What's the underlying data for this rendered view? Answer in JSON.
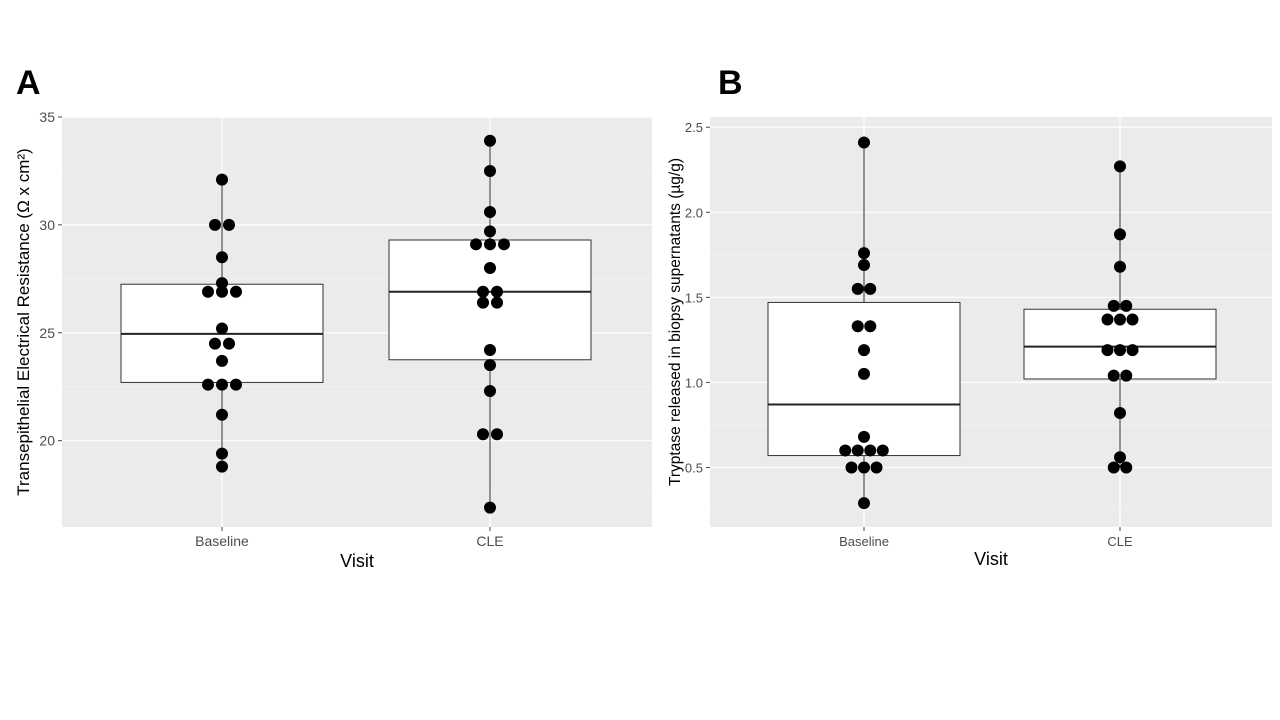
{
  "panels": {
    "a_label": "A",
    "b_label": "B"
  },
  "chart_data": [
    {
      "type": "box",
      "panel": "A",
      "title": "",
      "xlabel": "Visit",
      "ylabel": "Transepithelial Electrical Resistance (Ω x cm²)",
      "categories": [
        "Baseline",
        "CLE"
      ],
      "ylim": [
        16,
        35
      ],
      "yticks": [
        20,
        25,
        30,
        35
      ],
      "grid": true,
      "boxes": [
        {
          "category": "Baseline",
          "whisker_low": 18.8,
          "q1": 22.7,
          "median": 24.95,
          "q3": 27.25,
          "whisker_high": 32.1
        },
        {
          "category": "CLE",
          "whisker_low": 16.9,
          "q1": 23.75,
          "median": 26.9,
          "q3": 29.3,
          "whisker_high": 33.9
        }
      ],
      "points": [
        {
          "category": "Baseline",
          "values": [
            32.1,
            30.0,
            30.0,
            28.5,
            27.3,
            26.9,
            26.9,
            26.9,
            25.2,
            24.5,
            24.5,
            23.7,
            22.6,
            22.6,
            22.6,
            21.2,
            19.4,
            18.8
          ]
        },
        {
          "category": "CLE",
          "values": [
            33.9,
            32.5,
            30.6,
            29.7,
            29.1,
            29.1,
            29.1,
            28.0,
            26.9,
            26.9,
            26.4,
            26.4,
            24.2,
            23.5,
            22.3,
            20.3,
            20.3,
            16.9
          ]
        }
      ]
    },
    {
      "type": "box",
      "panel": "B",
      "title": "",
      "xlabel": "Visit",
      "ylabel": "Tryptase released in biopsy supernatants (µg/g)",
      "categories": [
        "Baseline",
        "CLE"
      ],
      "ylim": [
        0.15,
        2.56
      ],
      "yticks": [
        0.5,
        1.0,
        1.5,
        2.0,
        2.5
      ],
      "ytick_labels": [
        "0.5",
        "1.0",
        "1.5",
        "2.0",
        "2.5"
      ],
      "grid": true,
      "boxes": [
        {
          "category": "Baseline",
          "whisker_low": 0.29,
          "q1": 0.57,
          "median": 0.87,
          "q3": 1.47,
          "whisker_high": 2.41
        },
        {
          "category": "CLE",
          "whisker_low": 0.5,
          "q1": 1.02,
          "median": 1.21,
          "q3": 1.43,
          "whisker_high": 2.27
        }
      ],
      "points": [
        {
          "category": "Baseline",
          "values": [
            2.41,
            1.76,
            1.69,
            1.55,
            1.55,
            1.33,
            1.33,
            1.19,
            1.05,
            0.68,
            0.6,
            0.6,
            0.6,
            0.6,
            0.5,
            0.5,
            0.5,
            0.29
          ]
        },
        {
          "category": "CLE",
          "values": [
            2.27,
            1.87,
            1.68,
            1.45,
            1.45,
            1.37,
            1.37,
            1.37,
            1.19,
            1.19,
            1.19,
            1.04,
            1.04,
            0.82,
            0.56,
            0.5,
            0.5
          ]
        }
      ]
    }
  ]
}
